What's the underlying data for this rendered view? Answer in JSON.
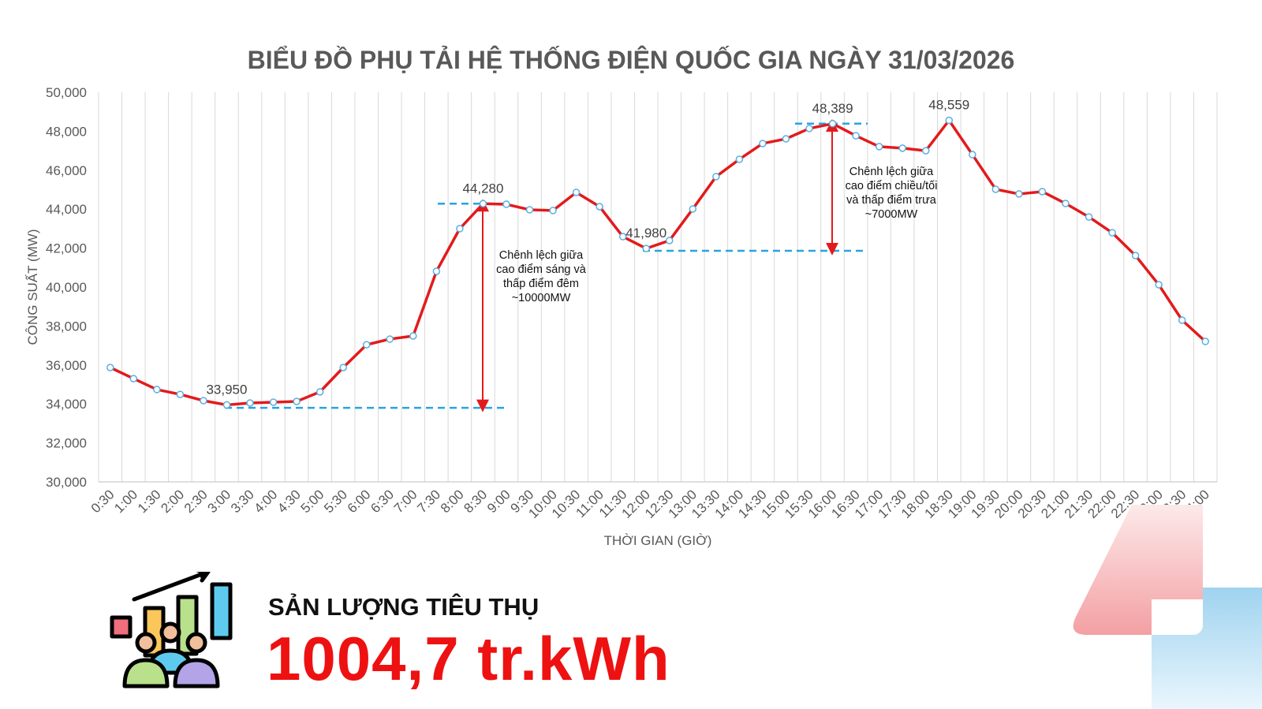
{
  "chart_data": {
    "type": "line",
    "title": "BIỂU ĐỒ PHỤ TẢI HỆ THỐNG ĐIỆN QUỐC GIA NGÀY 31/03/2026",
    "xlabel": "THỜI GIAN (GIỜ)",
    "ylabel": "CÔNG SUẤT (MW)",
    "ylim": [
      30000,
      50000
    ],
    "yticks": [
      "30,000",
      "32,000",
      "34,000",
      "36,000",
      "38,000",
      "40,000",
      "42,000",
      "44,000",
      "46,000",
      "48,000",
      "50,000"
    ],
    "grid": "vertical",
    "line_color": "#e31a1c",
    "marker_color": "#5aaee0",
    "categories": [
      "0:30",
      "1:00",
      "1:30",
      "2:00",
      "2:30",
      "3:00",
      "3:30",
      "4:00",
      "4:30",
      "5:00",
      "5:30",
      "6:00",
      "6:30",
      "7:00",
      "7:30",
      "8:00",
      "8:30",
      "9:00",
      "9:30",
      "10:00",
      "10:30",
      "11:00",
      "11:30",
      "12:00",
      "12:30",
      "13:00",
      "13:30",
      "14:00",
      "14:30",
      "15:00",
      "15:30",
      "16:00",
      "16:30",
      "17:00",
      "17:30",
      "18:00",
      "18:30",
      "19:00",
      "19:30",
      "20:00",
      "20:30",
      "21:00",
      "21:30",
      "22:00",
      "22:30",
      "23:00",
      "23:30",
      "24:00"
    ],
    "values": [
      35870,
      35300,
      34740,
      34490,
      34170,
      33950,
      34050,
      34090,
      34130,
      34620,
      35870,
      37040,
      37330,
      37490,
      40810,
      43000,
      44280,
      44250,
      43970,
      43930,
      44860,
      44130,
      42590,
      41980,
      42390,
      44010,
      45670,
      46560,
      47370,
      47610,
      48140,
      48389,
      47770,
      47210,
      47130,
      47000,
      48559,
      46800,
      45020,
      44780,
      44900,
      44290,
      43600,
      42790,
      41620,
      40120,
      38300,
      37210
    ],
    "data_labels": [
      {
        "category": "3:00",
        "text": "33,950"
      },
      {
        "category": "8:30",
        "text": "44,280"
      },
      {
        "category": "12:00",
        "text": "41,980"
      },
      {
        "category": "16:00",
        "text": "48,389"
      },
      {
        "category": "18:30",
        "text": "48,559"
      }
    ],
    "annotations": [
      {
        "lines": [
          "Chênh lệch giữa",
          "cao điểm sáng và",
          "thấp điểm đêm",
          "~10000MW"
        ]
      },
      {
        "lines": [
          "Chênh lệch giữa",
          "cao điểm chiều/tối",
          "và thấp điểm trưa",
          "~7000MW"
        ]
      }
    ],
    "annotation_color": "#29a3e0"
  },
  "summary": {
    "label": "SẢN LƯỢNG TIÊU THỤ",
    "value": "1004,7 tr.kWh",
    "icon": "consumption-growth-icon"
  }
}
